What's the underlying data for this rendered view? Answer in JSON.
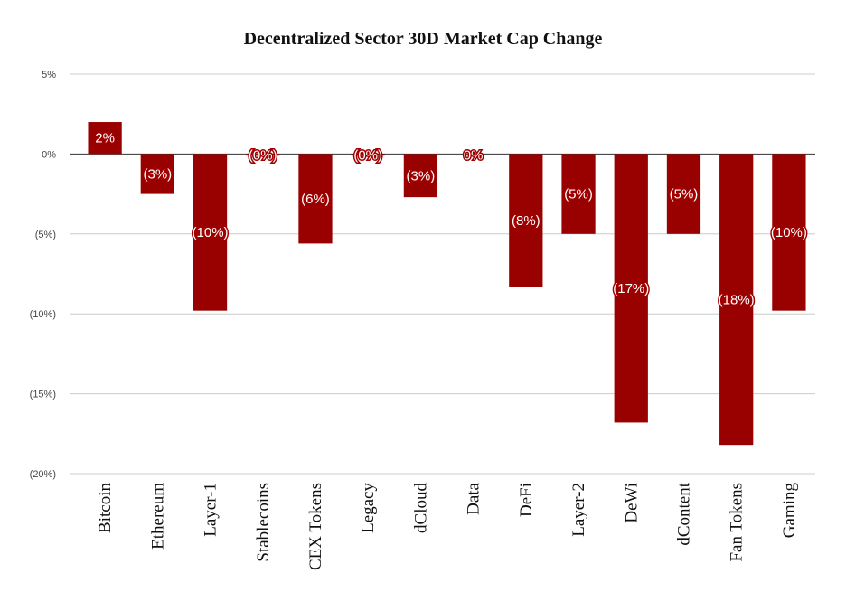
{
  "chart_data": {
    "type": "bar",
    "title": "Decentralized Sector 30D Market Cap Change",
    "xlabel": "",
    "ylabel": "",
    "categories": [
      "Bitcoin",
      "Ethereum",
      "Layer-1",
      "Stablecoins",
      "CEX Tokens",
      "Legacy",
      "dCloud",
      "Data",
      "DeFi",
      "Layer-2",
      "DeWi",
      "dContent",
      "Fan Tokens",
      "Gaming"
    ],
    "values": [
      2.0,
      -2.5,
      -9.8,
      -0.1,
      -5.6,
      -0.1,
      -2.7,
      0.0,
      -8.3,
      -5.0,
      -16.8,
      -5.0,
      -18.2,
      -9.8
    ],
    "data_labels": [
      "2%",
      "(3%)",
      "(10%)",
      "(0%)",
      "(6%)",
      "(0%)",
      "(3%)",
      "0%",
      "(8%)",
      "(5%)",
      "(17%)",
      "(5%)",
      "(18%)",
      "(10%)"
    ],
    "ylim": [
      -20,
      5
    ],
    "yticks": [
      5,
      0,
      -5,
      -10,
      -15,
      -20
    ],
    "ytick_labels": [
      "5%",
      "0%",
      "(5%)",
      "(10%)",
      "(15%)",
      "(20%)"
    ],
    "grid": true,
    "bar_color": "#990000"
  }
}
